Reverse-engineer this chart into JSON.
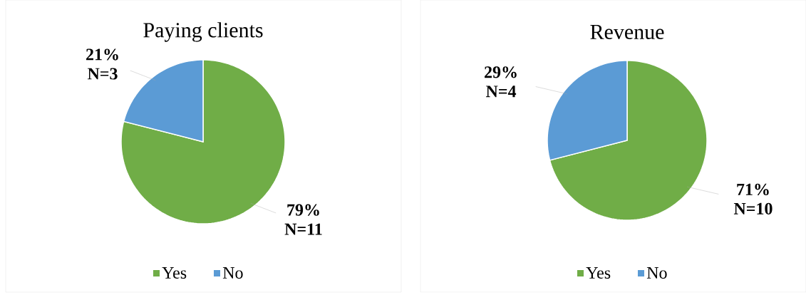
{
  "chart_data": [
    {
      "type": "pie",
      "title": "Paying clients",
      "categories": [
        "Yes",
        "No"
      ],
      "values": [
        79,
        21
      ],
      "colors": [
        "#70ad47",
        "#5b9bd5"
      ],
      "value_labels": [
        "79% N=11",
        "21% N=3"
      ],
      "legend": "bottom"
    },
    {
      "type": "pie",
      "title": "Revenue",
      "categories": [
        "Yes",
        "No"
      ],
      "values": [
        71,
        29
      ],
      "colors": [
        "#70ad47",
        "#5b9bd5"
      ],
      "value_labels": [
        "71% N=10",
        "29% N=4"
      ],
      "legend": "bottom"
    }
  ]
}
